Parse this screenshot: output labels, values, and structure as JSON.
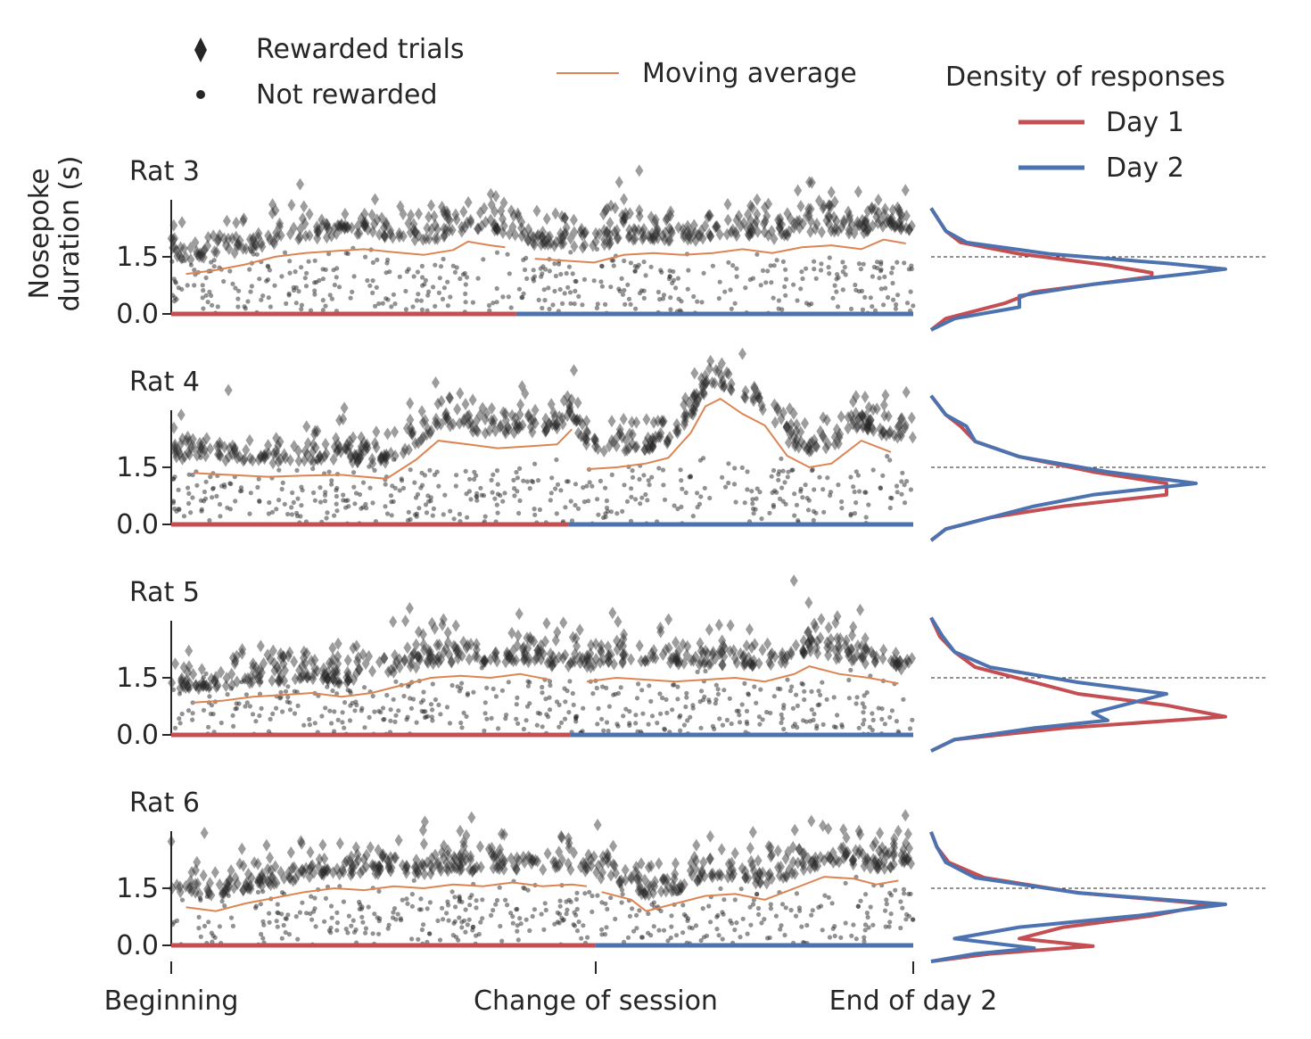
{
  "legend": {
    "rewarded_label": "Rewarded trials",
    "not_rewarded_label": "Not rewarded",
    "moving_average_label": "Moving average",
    "density_title": "Density of responses",
    "day1_label": "Day 1",
    "day2_label": "Day 2"
  },
  "axes": {
    "ylabel_line1": "Nosepoke",
    "ylabel_line2": "duration (s)",
    "yticks": [
      "0.0",
      "1.5"
    ],
    "xticks": [
      "Beginning",
      "Change of session",
      "End of day 2"
    ]
  },
  "colors": {
    "day1": "#c44e52",
    "day2": "#4c72b0",
    "moving_average": "#dd8452",
    "points": "#262626"
  },
  "chart_data": {
    "type": "scatter",
    "x_ticks": [
      "Beginning",
      "Change of session",
      "End of day 2"
    ],
    "y_ticks": [
      0.0,
      1.5
    ],
    "density_reference_line": 1.5,
    "panels": [
      {
        "title": "Rat 3",
        "session_change_fraction": 0.465,
        "moving_average": {
          "day1": [
            [
              0.02,
              1.05
            ],
            [
              0.06,
              1.15
            ],
            [
              0.1,
              1.3
            ],
            [
              0.14,
              1.5
            ],
            [
              0.18,
              1.6
            ],
            [
              0.22,
              1.65
            ],
            [
              0.26,
              1.7
            ],
            [
              0.3,
              1.62
            ],
            [
              0.34,
              1.55
            ],
            [
              0.38,
              1.68
            ],
            [
              0.4,
              1.9
            ],
            [
              0.43,
              1.8
            ],
            [
              0.45,
              1.75
            ]
          ],
          "day2": [
            [
              0.49,
              1.45
            ],
            [
              0.53,
              1.4
            ],
            [
              0.57,
              1.35
            ],
            [
              0.61,
              1.55
            ],
            [
              0.65,
              1.6
            ],
            [
              0.69,
              1.55
            ],
            [
              0.73,
              1.6
            ],
            [
              0.77,
              1.7
            ],
            [
              0.81,
              1.6
            ],
            [
              0.85,
              1.75
            ],
            [
              0.89,
              1.8
            ],
            [
              0.93,
              1.7
            ],
            [
              0.96,
              1.95
            ],
            [
              0.99,
              1.85
            ]
          ]
        },
        "density": {
          "day1": [
            [
              0,
              0.0
            ],
            [
              0.3,
              0.05
            ],
            [
              0.7,
              0.25
            ],
            [
              1.0,
              0.35
            ],
            [
              1.2,
              0.55
            ],
            [
              1.4,
              0.75
            ],
            [
              1.5,
              0.75
            ],
            [
              1.7,
              0.6
            ],
            [
              2.0,
              0.3
            ],
            [
              2.3,
              0.1
            ],
            [
              2.6,
              0.05
            ],
            [
              3.2,
              0.0
            ]
          ],
          "day2": [
            [
              0,
              0.0
            ],
            [
              0.3,
              0.08
            ],
            [
              0.6,
              0.3
            ],
            [
              0.9,
              0.3
            ],
            [
              1.2,
              0.55
            ],
            [
              1.5,
              0.9
            ],
            [
              1.6,
              1.0
            ],
            [
              1.75,
              0.8
            ],
            [
              2.0,
              0.4
            ],
            [
              2.3,
              0.12
            ],
            [
              2.6,
              0.05
            ],
            [
              3.2,
              0.0
            ]
          ]
        }
      },
      {
        "title": "Rat 4",
        "session_change_fraction": 0.535,
        "moving_average": {
          "day1": [
            [
              0.03,
              1.35
            ],
            [
              0.08,
              1.3
            ],
            [
              0.13,
              1.25
            ],
            [
              0.18,
              1.28
            ],
            [
              0.23,
              1.3
            ],
            [
              0.26,
              1.25
            ],
            [
              0.29,
              1.2
            ],
            [
              0.33,
              1.7
            ],
            [
              0.36,
              2.2
            ],
            [
              0.4,
              2.1
            ],
            [
              0.44,
              2.0
            ],
            [
              0.48,
              2.05
            ],
            [
              0.52,
              2.1
            ],
            [
              0.54,
              2.5
            ]
          ],
          "day2": [
            [
              0.56,
              1.45
            ],
            [
              0.6,
              1.5
            ],
            [
              0.64,
              1.6
            ],
            [
              0.67,
              1.75
            ],
            [
              0.7,
              2.4
            ],
            [
              0.72,
              3.1
            ],
            [
              0.74,
              3.3
            ],
            [
              0.77,
              2.9
            ],
            [
              0.8,
              2.6
            ],
            [
              0.83,
              1.8
            ],
            [
              0.86,
              1.5
            ],
            [
              0.89,
              1.6
            ],
            [
              0.93,
              2.2
            ],
            [
              0.97,
              1.9
            ]
          ]
        },
        "density": {
          "day1": [
            [
              0,
              0.0
            ],
            [
              0.3,
              0.05
            ],
            [
              0.6,
              0.2
            ],
            [
              0.9,
              0.45
            ],
            [
              1.2,
              0.8
            ],
            [
              1.5,
              0.8
            ],
            [
              1.8,
              0.55
            ],
            [
              2.2,
              0.3
            ],
            [
              2.6,
              0.15
            ],
            [
              3.0,
              0.1
            ],
            [
              3.3,
              0.05
            ],
            [
              3.8,
              0.0
            ]
          ],
          "day2": [
            [
              0,
              0.0
            ],
            [
              0.3,
              0.05
            ],
            [
              0.6,
              0.2
            ],
            [
              0.9,
              0.35
            ],
            [
              1.2,
              0.55
            ],
            [
              1.5,
              0.9
            ],
            [
              1.8,
              0.6
            ],
            [
              2.2,
              0.3
            ],
            [
              2.6,
              0.15
            ],
            [
              3.0,
              0.12
            ],
            [
              3.3,
              0.05
            ],
            [
              3.8,
              0.0
            ]
          ]
        }
      },
      {
        "title": "Rat 5",
        "session_change_fraction": 0.538,
        "moving_average": {
          "day1": [
            [
              0.03,
              0.85
            ],
            [
              0.07,
              0.9
            ],
            [
              0.11,
              1.0
            ],
            [
              0.15,
              1.05
            ],
            [
              0.19,
              1.1
            ],
            [
              0.23,
              1.0
            ],
            [
              0.27,
              1.1
            ],
            [
              0.31,
              1.3
            ],
            [
              0.35,
              1.5
            ],
            [
              0.39,
              1.55
            ],
            [
              0.43,
              1.5
            ],
            [
              0.47,
              1.6
            ],
            [
              0.51,
              1.45
            ]
          ],
          "day2": [
            [
              0.56,
              1.4
            ],
            [
              0.6,
              1.5
            ],
            [
              0.64,
              1.45
            ],
            [
              0.68,
              1.4
            ],
            [
              0.72,
              1.45
            ],
            [
              0.76,
              1.5
            ],
            [
              0.8,
              1.4
            ],
            [
              0.84,
              1.6
            ],
            [
              0.86,
              1.8
            ],
            [
              0.9,
              1.6
            ],
            [
              0.94,
              1.5
            ],
            [
              0.98,
              1.35
            ]
          ]
        },
        "density": {
          "day1": [
            [
              0,
              0.0
            ],
            [
              0.3,
              0.08
            ],
            [
              0.6,
              0.45
            ],
            [
              0.9,
              1.0
            ],
            [
              1.2,
              0.8
            ],
            [
              1.5,
              0.5
            ],
            [
              1.8,
              0.35
            ],
            [
              2.2,
              0.15
            ],
            [
              2.6,
              0.08
            ],
            [
              3.0,
              0.03
            ],
            [
              3.5,
              0.0
            ]
          ],
          "day2": [
            [
              0,
              0.0
            ],
            [
              0.3,
              0.08
            ],
            [
              0.6,
              0.35
            ],
            [
              0.8,
              0.6
            ],
            [
              1.0,
              0.55
            ],
            [
              1.5,
              0.8
            ],
            [
              1.8,
              0.5
            ],
            [
              2.2,
              0.2
            ],
            [
              2.6,
              0.08
            ],
            [
              3.0,
              0.04
            ],
            [
              3.5,
              0.0
            ]
          ]
        }
      },
      {
        "title": "Rat 6",
        "session_change_fraction": 0.572,
        "moving_average": {
          "day1": [
            [
              0.02,
              1.0
            ],
            [
              0.06,
              0.9
            ],
            [
              0.1,
              1.1
            ],
            [
              0.14,
              1.25
            ],
            [
              0.18,
              1.4
            ],
            [
              0.22,
              1.5
            ],
            [
              0.26,
              1.45
            ],
            [
              0.3,
              1.55
            ],
            [
              0.34,
              1.5
            ],
            [
              0.38,
              1.6
            ],
            [
              0.42,
              1.55
            ],
            [
              0.46,
              1.65
            ],
            [
              0.5,
              1.55
            ],
            [
              0.54,
              1.6
            ],
            [
              0.56,
              1.55
            ]
          ],
          "day2": [
            [
              0.58,
              1.4
            ],
            [
              0.62,
              1.2
            ],
            [
              0.64,
              0.9
            ],
            [
              0.68,
              1.1
            ],
            [
              0.72,
              1.3
            ],
            [
              0.76,
              1.35
            ],
            [
              0.8,
              1.2
            ],
            [
              0.84,
              1.5
            ],
            [
              0.88,
              1.8
            ],
            [
              0.92,
              1.75
            ],
            [
              0.95,
              1.6
            ],
            [
              0.98,
              1.7
            ]
          ]
        },
        "density": {
          "day1": [
            [
              0,
              0.0
            ],
            [
              0.2,
              0.2
            ],
            [
              0.4,
              0.55
            ],
            [
              0.6,
              0.3
            ],
            [
              0.9,
              0.45
            ],
            [
              1.2,
              0.75
            ],
            [
              1.5,
              0.95
            ],
            [
              1.8,
              0.5
            ],
            [
              2.2,
              0.18
            ],
            [
              2.6,
              0.06
            ],
            [
              3.0,
              0.02
            ],
            [
              3.4,
              0.0
            ]
          ],
          "day2": [
            [
              0,
              0.0
            ],
            [
              0.2,
              0.15
            ],
            [
              0.35,
              0.35
            ],
            [
              0.6,
              0.08
            ],
            [
              0.9,
              0.3
            ],
            [
              1.2,
              0.7
            ],
            [
              1.5,
              1.0
            ],
            [
              1.8,
              0.5
            ],
            [
              2.2,
              0.15
            ],
            [
              2.6,
              0.05
            ],
            [
              3.0,
              0.02
            ],
            [
              3.4,
              0.0
            ]
          ]
        }
      }
    ]
  }
}
